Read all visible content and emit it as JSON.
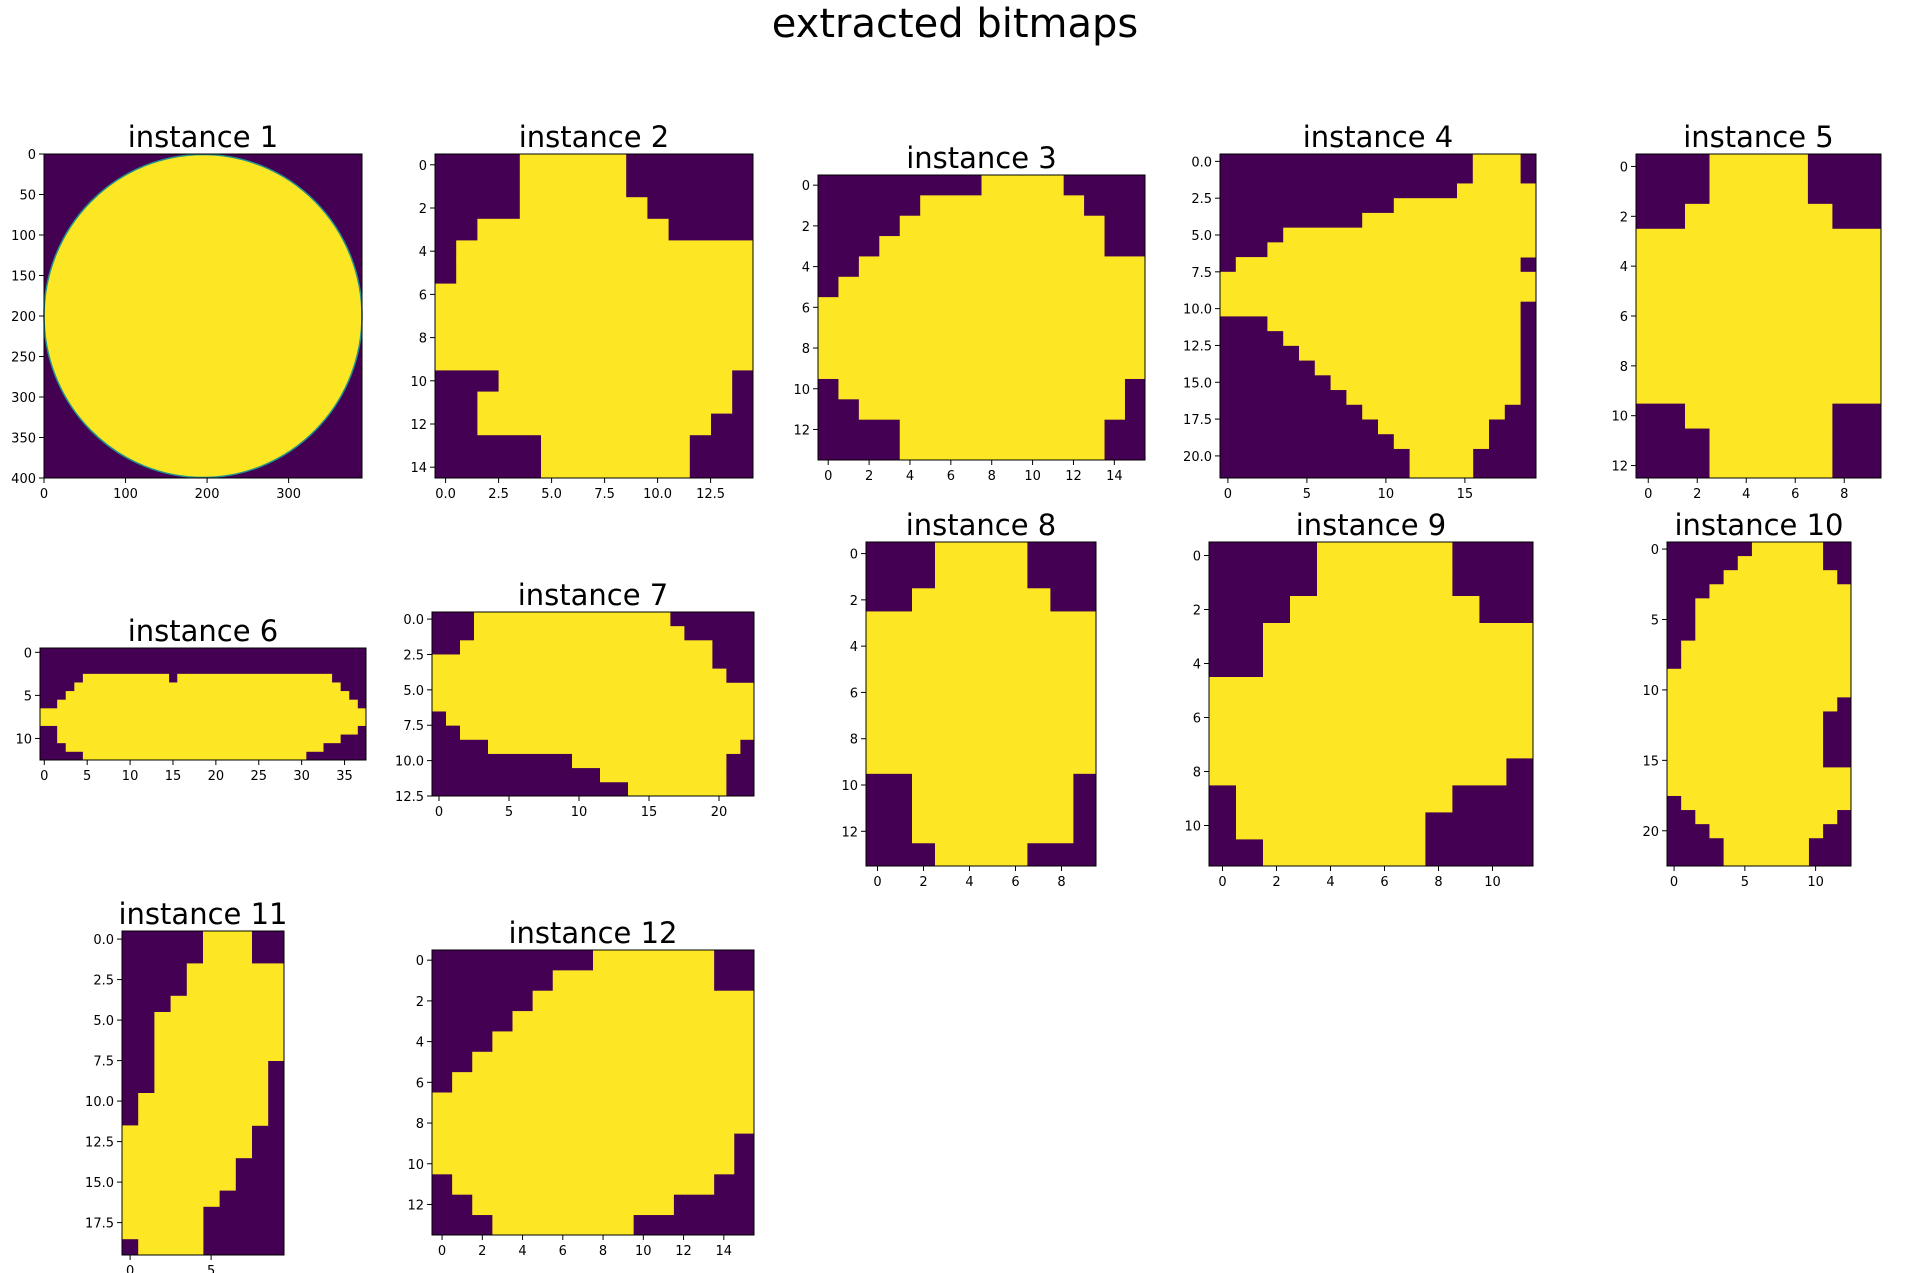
{
  "figure": {
    "title": "extracted bitmaps",
    "colors": {
      "background": "#440154",
      "foreground": "#fde725",
      "edge": "#21918c",
      "text": "#000000"
    }
  },
  "chart_data": [
    {
      "type": "heatmap",
      "title": "instance 1",
      "width": 390,
      "height": 400,
      "shape": "disk",
      "xticks": [
        "0",
        "100",
        "200",
        "300"
      ],
      "yticks": [
        "0",
        "50",
        "100",
        "150",
        "200",
        "250",
        "300",
        "350",
        "400"
      ]
    },
    {
      "type": "heatmap",
      "title": "instance 2",
      "width": 15,
      "height": 15,
      "rows": [
        "000011111000000",
        "000011111000000",
        "000011111100000",
        "001111111110000",
        "011111111111111",
        "011111111111111",
        "111111111111111",
        "111111111111111",
        "111111111111111",
        "111111111111111",
        "000111111111110",
        "001111111111110",
        "001111111111100",
        "000001111111000",
        "000001111111000"
      ],
      "xticks": [
        "0.0",
        "2.5",
        "5.0",
        "7.5",
        "10.0",
        "12.5"
      ],
      "yticks": [
        "0",
        "2",
        "4",
        "6",
        "8",
        "10",
        "12",
        "14"
      ]
    },
    {
      "type": "heatmap",
      "title": "instance 3",
      "width": 16,
      "height": 14,
      "rows": [
        "0000000011110000",
        "0000011111111000",
        "0000111111111100",
        "0001111111111100",
        "0011111111111111",
        "0111111111111111",
        "1111111111111111",
        "1111111111111111",
        "1111111111111111",
        "1111111111111111",
        "0111111111111110",
        "0011111111111110",
        "0000111111111100",
        "0000111111111100"
      ],
      "xticks": [
        "0",
        "2",
        "4",
        "6",
        "8",
        "10",
        "12",
        "14"
      ],
      "yticks": [
        "0",
        "2",
        "4",
        "6",
        "8",
        "10",
        "12"
      ]
    },
    {
      "type": "heatmap",
      "title": "instance 4",
      "width": 20,
      "height": 22,
      "rows": [
        "00000000000000001110",
        "00000000000000001110",
        "00000000000000011111",
        "00000000000111111111",
        "00000000011111111111",
        "00001111111111111111",
        "00011111111111111111",
        "01111111111111111110",
        "11111111111111111111",
        "11111111111111111111",
        "11111111111111111110",
        "00011111111111111110",
        "00001111111111111110",
        "00000111111111111110",
        "00000011111111111110",
        "00000001111111111110",
        "00000000111111111110",
        "00000000011111111100",
        "00000000001111111000",
        "00000000000111111000",
        "00000000000011110000",
        "00000000000011110000"
      ],
      "xticks": [
        "0",
        "5",
        "10",
        "15"
      ],
      "yticks": [
        "0.0",
        "2.5",
        "5.0",
        "7.5",
        "10.0",
        "12.5",
        "15.0",
        "17.5",
        "20.0"
      ]
    },
    {
      "type": "heatmap",
      "title": "instance 5",
      "width": 10,
      "height": 13,
      "rows": [
        "0001111000",
        "0001111000",
        "0011111100",
        "1111111111",
        "1111111111",
        "1111111111",
        "1111111111",
        "1111111111",
        "1111111111",
        "1111111111",
        "0011111100",
        "0001111100",
        "0001111100"
      ],
      "xticks": [
        "0",
        "2",
        "4",
        "6",
        "8"
      ],
      "yticks": [
        "0",
        "2",
        "4",
        "6",
        "8",
        "10",
        "12"
      ]
    },
    {
      "type": "heatmap",
      "title": "instance 6",
      "width": 38,
      "height": 13,
      "rows": [
        "00000000000000000000000000000000000000",
        "00000000000000000000000000000000000000",
        "00000000000000000000000000000000000000",
        "00000111111111101111111111111111110000",
        "00001111111111111111111111111111111000",
        "00011111111111111111111111111111111100",
        "00111111111111111111111111111111111110",
        "11111111111111111111111111111111111111",
        "11111111111111111111111111111111111111",
        "00111111111111111111111111111111111110",
        "00111111111111111111111111111111111000",
        "00011111111111111111111111111111100000",
        "00000111111111111111111111111110000000"
      ],
      "xticks": [
        "0",
        "5",
        "10",
        "15",
        "20",
        "25",
        "30",
        "35"
      ],
      "yticks": [
        "0",
        "5",
        "10"
      ]
    },
    {
      "type": "heatmap",
      "title": "instance 7",
      "width": 23,
      "height": 13,
      "rows": [
        "00011111111111111000000",
        "00011111111111111100000",
        "00111111111111111111000",
        "11111111111111111111000",
        "11111111111111111111100",
        "11111111111111111111111",
        "11111111111111111111111",
        "01111111111111111111111",
        "00111111111111111111111",
        "00001111111111111111110",
        "00000000001111111111100",
        "00000000000011111111100",
        "00000000000000111111100"
      ],
      "xticks": [
        "0",
        "5",
        "10",
        "15",
        "20"
      ],
      "yticks": [
        "0.0",
        "2.5",
        "5.0",
        "7.5",
        "10.0",
        "12.5"
      ]
    },
    {
      "type": "heatmap",
      "title": "instance 8",
      "width": 10,
      "height": 14,
      "rows": [
        "0001111000",
        "0001111000",
        "0011111100",
        "1111111111",
        "1111111111",
        "1111111111",
        "1111111111",
        "1111111111",
        "1111111111",
        "1111111111",
        "0011111110",
        "0011111110",
        "0011111110",
        "0001111000"
      ],
      "xticks": [
        "0",
        "2",
        "4",
        "6",
        "8"
      ],
      "yticks": [
        "0",
        "2",
        "4",
        "6",
        "8",
        "10",
        "12"
      ]
    },
    {
      "type": "heatmap",
      "title": "instance 9",
      "width": 12,
      "height": 12,
      "rows": [
        "000011111000",
        "000011111000",
        "000111111100",
        "001111111111",
        "001111111111",
        "111111111111",
        "111111111111",
        "111111111111",
        "111111111110",
        "011111111000",
        "011111110000",
        "001111110000"
      ],
      "xticks": [
        "0",
        "2",
        "4",
        "6",
        "8",
        "10"
      ],
      "yticks": [
        "0",
        "2",
        "4",
        "6",
        "8",
        "10"
      ]
    },
    {
      "type": "heatmap",
      "title": "instance 10",
      "width": 13,
      "height": 23,
      "rows": [
        "0000001111100",
        "0000011111100",
        "0000111111110",
        "0001111111111",
        "0011111111111",
        "0011111111111",
        "0011111111111",
        "0111111111111",
        "0111111111111",
        "1111111111111",
        "1111111111111",
        "1111111111110",
        "1111111111100",
        "1111111111100",
        "1111111111100",
        "1111111111100",
        "1111111111111",
        "1111111111111",
        "0111111111111",
        "0011111111110",
        "0001111111100",
        "0000111111000",
        "0000111111000"
      ],
      "xticks": [
        "0",
        "5",
        "10"
      ],
      "yticks": [
        "0",
        "5",
        "10",
        "15",
        "20"
      ]
    },
    {
      "type": "heatmap",
      "title": "instance 11",
      "width": 10,
      "height": 20,
      "rows": [
        "0000011100",
        "0000011100",
        "0000111111",
        "0000111111",
        "0001111111",
        "0011111111",
        "0011111111",
        "0011111111",
        "0011111110",
        "0011111110",
        "0111111110",
        "0111111110",
        "1111111100",
        "1111111100",
        "1111111000",
        "1111111000",
        "1111110000",
        "1111100000",
        "1111100000",
        "0111100000"
      ],
      "xticks": [
        "0",
        "5"
      ],
      "yticks": [
        "0.0",
        "2.5",
        "5.0",
        "7.5",
        "10.0",
        "12.5",
        "15.0",
        "17.5"
      ]
    },
    {
      "type": "heatmap",
      "title": "instance 12",
      "width": 16,
      "height": 14,
      "rows": [
        "0000000011111100",
        "0000001111111100",
        "0000011111111111",
        "0000111111111111",
        "0001111111111111",
        "0011111111111111",
        "0111111111111111",
        "1111111111111111",
        "1111111111111111",
        "1111111111111110",
        "1111111111111110",
        "0111111111111100",
        "0011111111110000",
        "0001111111000000"
      ],
      "xticks": [
        "0",
        "2",
        "4",
        "6",
        "8",
        "10",
        "12",
        "14"
      ],
      "yticks": [
        "0",
        "2",
        "4",
        "6",
        "8",
        "10",
        "12"
      ]
    }
  ]
}
